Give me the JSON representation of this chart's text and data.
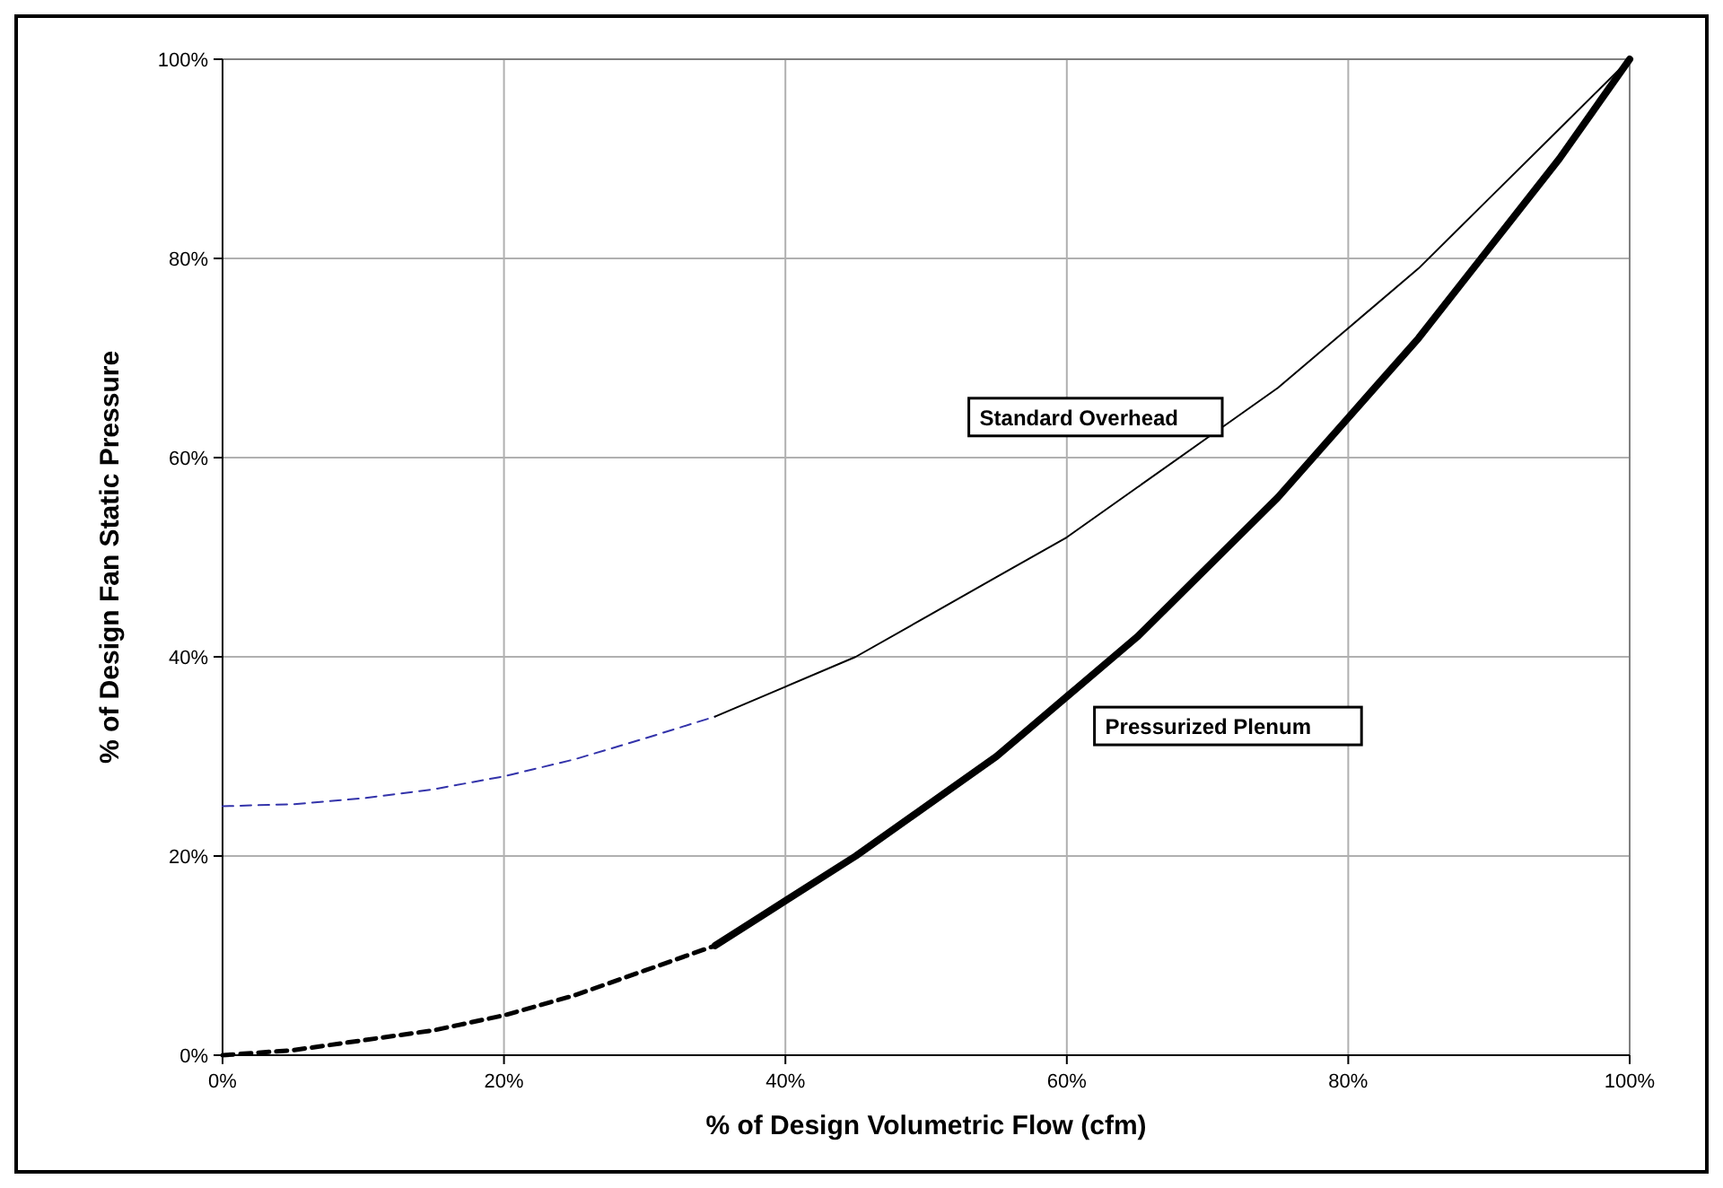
{
  "chart_data": {
    "type": "line",
    "xlabel": "% of Design Volumetric Flow (cfm)",
    "ylabel": "% of Design Fan Static Pressure",
    "xlim": [
      0,
      100
    ],
    "ylim": [
      0,
      100
    ],
    "xticks": [
      {
        "value": 0,
        "label": "0%"
      },
      {
        "value": 20,
        "label": "20%"
      },
      {
        "value": 40,
        "label": "40%"
      },
      {
        "value": 60,
        "label": "60%"
      },
      {
        "value": 80,
        "label": "80%"
      },
      {
        "value": 100,
        "label": "100%"
      }
    ],
    "yticks": [
      {
        "value": 0,
        "label": "0%"
      },
      {
        "value": 20,
        "label": "20%"
      },
      {
        "value": 40,
        "label": "40%"
      },
      {
        "value": 60,
        "label": "60%"
      },
      {
        "value": 80,
        "label": "80%"
      },
      {
        "value": 100,
        "label": "100%"
      }
    ],
    "grid": true,
    "legend": "center",
    "series": [
      {
        "color": "#3333aa",
        "line_style": "dashed",
        "x": [
          0,
          5,
          10,
          15,
          20,
          25,
          30,
          35
        ],
        "values": [
          25,
          25.2,
          25.8,
          26.7,
          28,
          29.7,
          31.8,
          34
        ]
      },
      {
        "name": "Standard Overhead",
        "color": "#000000",
        "line_style": "solid",
        "x": [
          35,
          40,
          45,
          50,
          55,
          60,
          65,
          70,
          75,
          80,
          85,
          90,
          95,
          100
        ],
        "values": [
          34,
          37,
          40,
          44,
          48,
          52,
          57,
          62,
          67,
          73,
          79,
          86,
          93,
          100
        ]
      },
      {
        "color": "#000000",
        "line_style": "dashed",
        "x": [
          0,
          5,
          10,
          15,
          20,
          25,
          30,
          35
        ],
        "values": [
          0,
          0.5,
          1.5,
          2.5,
          4,
          6,
          8.5,
          11
        ]
      },
      {
        "name": "Pressurized Plenum",
        "color": "#000000",
        "line_style": "solid",
        "x": [
          35,
          40,
          45,
          50,
          55,
          60,
          65,
          70,
          75,
          80,
          85,
          90,
          95,
          100
        ],
        "values": [
          11,
          15.5,
          20,
          25,
          30,
          36,
          42,
          49,
          56,
          64,
          72,
          81,
          90,
          100
        ]
      }
    ]
  }
}
